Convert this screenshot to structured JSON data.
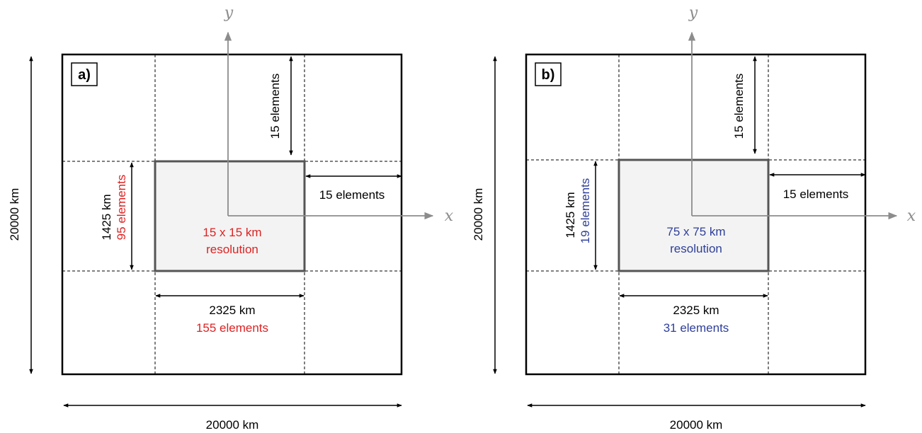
{
  "colors": {
    "red": "#dd2222",
    "blue": "#2e3f9a",
    "black": "#000000",
    "axis_gray": "#8c8c8c",
    "inner_fill": "#f3f3f3"
  },
  "panel_a": {
    "label": "a)",
    "total_width": "20000 km",
    "total_height": "20000 km",
    "top_elements": "15 elements",
    "right_elements": "15 elements",
    "inner_height_km": "1425 km",
    "inner_height_elements": "95 elements",
    "inner_width_km": "2325 km",
    "inner_width_elements": "155 elements",
    "resolution_line1": "15 x 15 km",
    "resolution_line2": "resolution",
    "axis_x": "x",
    "axis_y": "y"
  },
  "panel_b": {
    "label": "b)",
    "total_width": "20000 km",
    "total_height": "20000 km",
    "top_elements": "15 elements",
    "right_elements": "15 elements",
    "inner_height_km": "1425 km",
    "inner_height_elements": "19 elements",
    "inner_width_km": "2325 km",
    "inner_width_elements": "31 elements",
    "resolution_line1": "75 x 75 km",
    "resolution_line2": "resolution",
    "axis_x": "x",
    "axis_y": "y"
  }
}
